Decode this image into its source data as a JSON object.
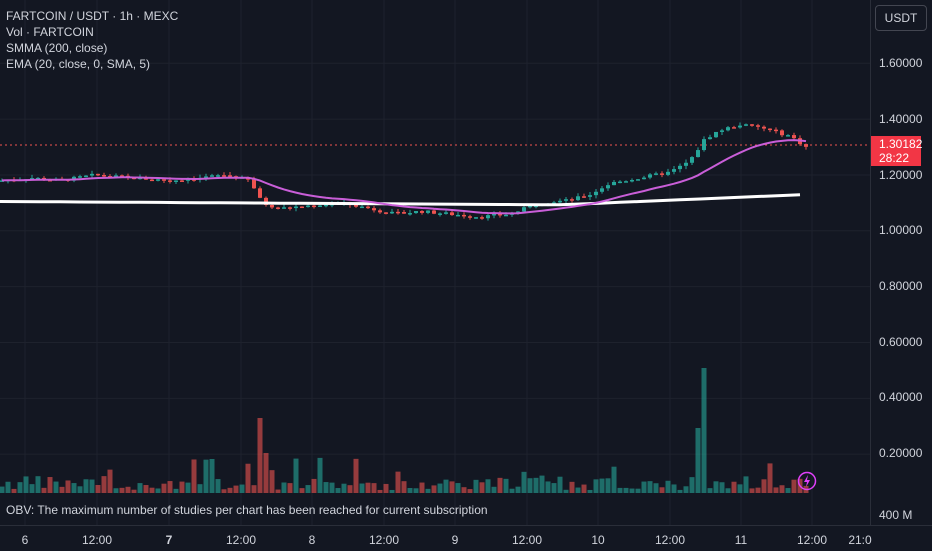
{
  "legend": {
    "symbol_line": "FARTCOIN / USDT · 1h · MEXC",
    "volume": "Vol · FARTCOIN",
    "smma": "SMMA (200, close)",
    "ema": "EMA (20, close, 0, SMA, 5)"
  },
  "price_scale": {
    "currency": "USDT",
    "labels": [
      "1.60000",
      "1.40000",
      "1.20000",
      "1.00000",
      "0.80000",
      "0.60000",
      "0.40000",
      "0.20000"
    ],
    "current_price": "1.30182",
    "countdown": "28:22",
    "volume_label": "400 M"
  },
  "time_axis": {
    "labels": [
      "6",
      "12:00",
      "7",
      "12:00",
      "8",
      "12:00",
      "9",
      "12:00",
      "10",
      "12:00",
      "11",
      "12:00",
      "21:0"
    ]
  },
  "obv_message": "OBV: The maximum number of studies per chart has been reached for current subscription",
  "colors": {
    "up": "#26a69a",
    "down": "#ef5350",
    "ema": "#c95ed8",
    "smma": "#ffffff",
    "bg": "#131722"
  },
  "chart_data": {
    "type": "candlestick",
    "price_range": [
      0.0,
      1.8
    ],
    "current_price": 1.30182,
    "smma_anchor": [
      1.085,
      1.13
    ],
    "series_keypoints": [
      [
        0,
        1.18
      ],
      [
        30,
        1.19
      ],
      [
        60,
        1.18
      ],
      [
        95,
        1.2
      ],
      [
        130,
        1.19
      ],
      [
        170,
        1.18
      ],
      [
        200,
        1.19
      ],
      [
        225,
        1.2
      ],
      [
        250,
        1.18
      ],
      [
        262,
        1.1
      ],
      [
        280,
        1.08
      ],
      [
        310,
        1.09
      ],
      [
        340,
        1.1
      ],
      [
        370,
        1.08
      ],
      [
        395,
        1.06
      ],
      [
        420,
        1.07
      ],
      [
        450,
        1.06
      ],
      [
        480,
        1.05
      ],
      [
        510,
        1.06
      ],
      [
        540,
        1.1
      ],
      [
        570,
        1.11
      ],
      [
        590,
        1.13
      ],
      [
        610,
        1.17
      ],
      [
        640,
        1.19
      ],
      [
        670,
        1.21
      ],
      [
        690,
        1.25
      ],
      [
        705,
        1.33
      ],
      [
        720,
        1.36
      ],
      [
        740,
        1.38
      ],
      [
        760,
        1.37
      ],
      [
        790,
        1.34
      ],
      [
        806,
        1.3
      ]
    ]
  }
}
